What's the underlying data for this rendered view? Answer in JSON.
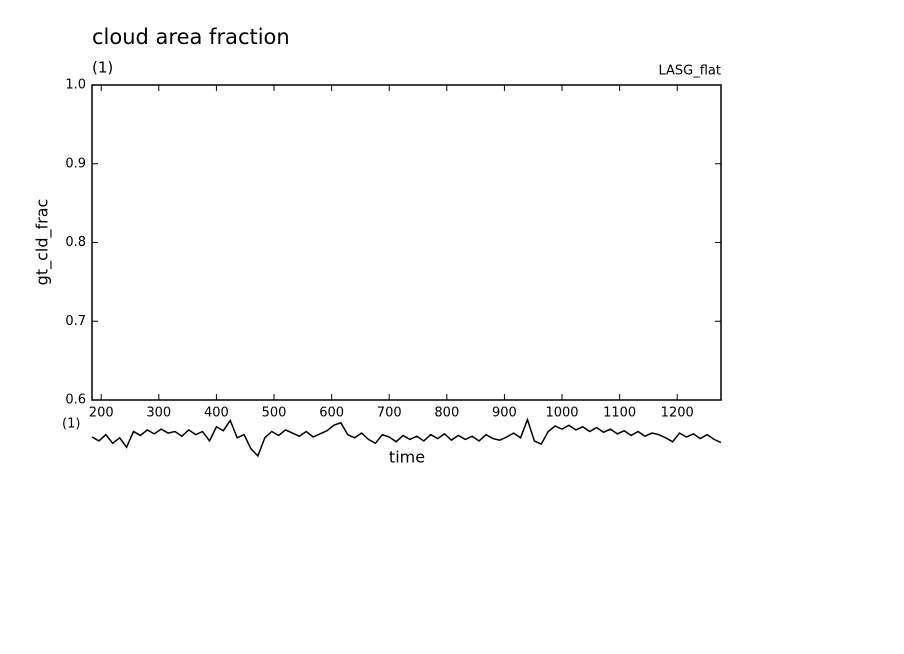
{
  "chart_data": {
    "type": "line",
    "title": "cloud area fraction",
    "subtitle": "(1)",
    "right_label": "LASG_flat",
    "y_label": "gt_cld_frac",
    "x_label": "time",
    "x_unit": "(1)",
    "xlim": [
      184,
      1276
    ],
    "ylim": [
      0.6,
      1.0
    ],
    "xticks": [
      200,
      300,
      400,
      500,
      600,
      700,
      800,
      900,
      1000,
      1100,
      1200
    ],
    "yticks": [
      0.6,
      0.7,
      0.8,
      0.9,
      {
        "value": 1,
        "label": "1.0"
      }
    ],
    "x": [
      184,
      196,
      208,
      220,
      232,
      244,
      256,
      268,
      280,
      292,
      304,
      316,
      328,
      340,
      352,
      364,
      376,
      388,
      400,
      412,
      424,
      436,
      448,
      460,
      472,
      484,
      496,
      508,
      520,
      532,
      544,
      556,
      568,
      580,
      592,
      604,
      616,
      628,
      640,
      652,
      664,
      676,
      688,
      700,
      712,
      724,
      736,
      748,
      760,
      772,
      784,
      796,
      808,
      820,
      832,
      844,
      856,
      868,
      880,
      892,
      904,
      916,
      928,
      940,
      952,
      964,
      976,
      988,
      1000,
      1012,
      1024,
      1036,
      1048,
      1060,
      1072,
      1084,
      1096,
      1108,
      1120,
      1132,
      1144,
      1156,
      1168,
      1180,
      1192,
      1204,
      1216,
      1228,
      1240,
      1252,
      1264,
      1276
    ],
    "series": [
      {
        "color": "#000000",
        "values": [
          0.553,
          0.548,
          0.556,
          0.545,
          0.552,
          0.54,
          0.56,
          0.555,
          0.562,
          0.557,
          0.563,
          0.558,
          0.56,
          0.554,
          0.562,
          0.556,
          0.56,
          0.548,
          0.566,
          0.561,
          0.574,
          0.552,
          0.556,
          0.538,
          0.529,
          0.552,
          0.56,
          0.555,
          0.562,
          0.558,
          0.554,
          0.56,
          0.553,
          0.557,
          0.561,
          0.568,
          0.571,
          0.556,
          0.552,
          0.558,
          0.55,
          0.545,
          0.556,
          0.553,
          0.547,
          0.555,
          0.55,
          0.554,
          0.548,
          0.556,
          0.551,
          0.557,
          0.549,
          0.555,
          0.55,
          0.554,
          0.548,
          0.556,
          0.551,
          0.549,
          0.553,
          0.558,
          0.552,
          0.575,
          0.548,
          0.544,
          0.56,
          0.567,
          0.563,
          0.568,
          0.562,
          0.566,
          0.56,
          0.565,
          0.559,
          0.563,
          0.557,
          0.561,
          0.555,
          0.56,
          0.554,
          0.558,
          0.556,
          0.552,
          0.547,
          0.558,
          0.553,
          0.557,
          0.551,
          0.556,
          0.55,
          0.546
        ]
      }
    ]
  }
}
